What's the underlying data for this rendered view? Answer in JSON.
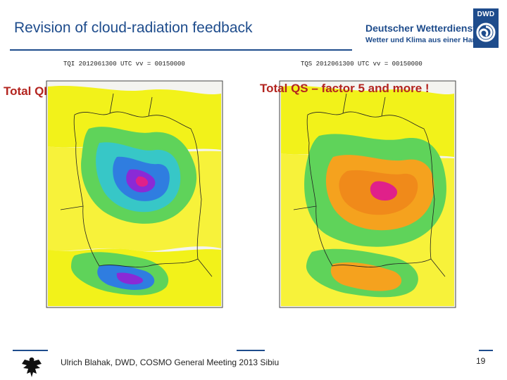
{
  "slide": {
    "title": "Revision of cloud-radiation feedback",
    "page_number": "19",
    "footer": "Ulrich Blahak, DWD, COSMO General Meeting 2013 Sibiu"
  },
  "logo": {
    "badge": "DWD",
    "line1": "Deutscher Wetterdienst",
    "line2": "Wetter und Klima aus einer Hand"
  },
  "panels": [
    {
      "label": "Total QI",
      "header": "TQI  2012061300 UTC    vv = 00150000"
    },
    {
      "label": "Total QS – factor 5 and more !",
      "header": "TQS  2012061300 UTC    vv = 00150000"
    }
  ],
  "colors": {
    "title_blue": "#1e4c8c",
    "label_red": "#b3241f"
  }
}
